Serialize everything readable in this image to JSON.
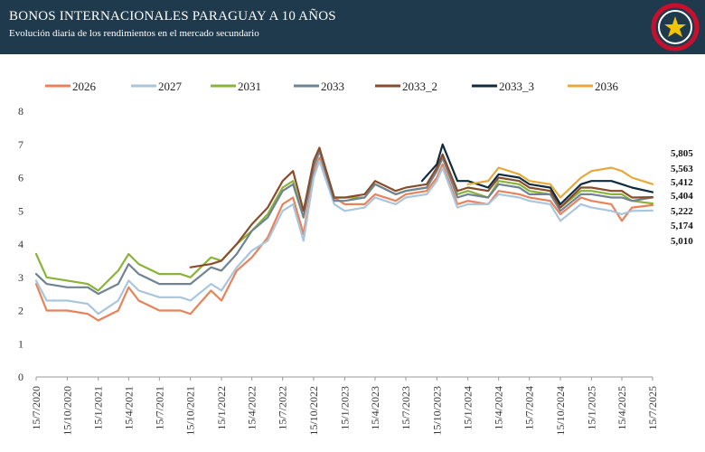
{
  "header": {
    "title": "BONOS INTERNACIONALES PARAGUAY A 10 AÑOS",
    "subtitle": "Evolución diaria de los rendimientos en el mercado secundario"
  },
  "chart_data": {
    "type": "line",
    "ylim": [
      0,
      8
    ],
    "yticks": [
      "0",
      "1",
      "2",
      "3",
      "4",
      "5",
      "6",
      "7",
      "8"
    ],
    "xticks": [
      "15/7/2020",
      "15/10/2020",
      "15/1/2021",
      "15/4/2021",
      "15/7/2021",
      "15/10/2021",
      "15/1/2022",
      "15/4/2022",
      "15/7/2022",
      "15/10/2022",
      "15/1/2023",
      "15/4/2023",
      "15/7/2023",
      "15/10/2023",
      "15/1/2024",
      "15/4/2024",
      "15/7/2024",
      "15/10/2024",
      "15/1/2025",
      "15/4/2025",
      "15/7/2025"
    ],
    "grid": false,
    "legend_position": "top",
    "end_labels": [
      "5,805",
      "5,563",
      "5,412",
      "5,404",
      "5,222",
      "5,174",
      "5,010"
    ],
    "series": [
      {
        "name": "2026",
        "color": "#e8825a",
        "x": [
          "15/7/2020",
          "15/8/2020",
          "15/10/2020",
          "15/12/2020",
          "15/1/2021",
          "15/3/2021",
          "15/4/2021",
          "15/5/2021",
          "15/7/2021",
          "15/9/2021",
          "15/10/2021",
          "15/12/2021",
          "15/1/2022",
          "1/3/2022",
          "15/4/2022",
          "1/6/2022",
          "15/7/2022",
          "15/8/2022",
          "15/9/2022",
          "15/10/2022",
          "1/11/2022",
          "15/12/2022",
          "15/1/2023",
          "15/3/2023",
          "15/4/2023",
          "15/6/2023",
          "15/7/2023",
          "15/9/2023",
          "15/10/2023",
          "1/11/2023",
          "15/12/2023",
          "15/1/2024",
          "15/3/2024",
          "15/4/2024",
          "15/6/2024",
          "15/7/2024",
          "15/9/2024",
          "15/10/2024",
          "15/12/2024",
          "15/1/2025",
          "15/3/2025",
          "15/4/2025",
          "15/5/2025",
          "15/7/2025"
        ],
        "y": [
          2.8,
          2.0,
          2.0,
          1.9,
          1.7,
          2.0,
          2.7,
          2.3,
          2.0,
          2.0,
          1.9,
          2.6,
          2.3,
          3.2,
          3.6,
          4.2,
          5.2,
          5.4,
          4.3,
          6.1,
          6.6,
          5.4,
          5.2,
          5.2,
          5.5,
          5.3,
          5.5,
          5.6,
          6.0,
          6.4,
          5.2,
          5.3,
          5.2,
          5.6,
          5.5,
          5.4,
          5.3,
          4.9,
          5.4,
          5.3,
          5.2,
          4.7,
          5.1,
          5.174
        ]
      },
      {
        "name": "2027",
        "color": "#a9c6dd",
        "x": [
          "15/7/2020",
          "15/8/2020",
          "15/10/2020",
          "15/12/2020",
          "15/1/2021",
          "15/3/2021",
          "15/4/2021",
          "15/5/2021",
          "15/7/2021",
          "15/9/2021",
          "15/10/2021",
          "15/12/2021",
          "15/1/2022",
          "1/3/2022",
          "15/4/2022",
          "1/6/2022",
          "15/7/2022",
          "15/8/2022",
          "15/9/2022",
          "15/10/2022",
          "1/11/2022",
          "15/12/2022",
          "15/1/2023",
          "15/3/2023",
          "15/4/2023",
          "15/6/2023",
          "15/7/2023",
          "15/9/2023",
          "15/10/2023",
          "1/11/2023",
          "15/12/2023",
          "15/1/2024",
          "15/3/2024",
          "15/4/2024",
          "15/6/2024",
          "15/7/2024",
          "15/9/2024",
          "15/10/2024",
          "15/12/2024",
          "15/1/2025",
          "15/3/2025",
          "15/4/2025",
          "15/5/2025",
          "15/7/2025"
        ],
        "y": [
          2.9,
          2.3,
          2.3,
          2.2,
          1.9,
          2.3,
          2.9,
          2.6,
          2.4,
          2.4,
          2.3,
          2.8,
          2.6,
          3.3,
          3.8,
          4.1,
          5.0,
          5.2,
          4.1,
          6.0,
          6.5,
          5.2,
          5.0,
          5.1,
          5.4,
          5.2,
          5.4,
          5.5,
          5.9,
          6.3,
          5.1,
          5.2,
          5.2,
          5.5,
          5.4,
          5.3,
          5.2,
          4.7,
          5.2,
          5.1,
          5.0,
          4.9,
          5.0,
          5.01
        ]
      },
      {
        "name": "2031",
        "color": "#8ab33a",
        "x": [
          "15/7/2020",
          "15/8/2020",
          "15/10/2020",
          "15/12/2020",
          "15/1/2021",
          "15/3/2021",
          "15/4/2021",
          "15/5/2021",
          "15/7/2021",
          "15/9/2021",
          "15/10/2021",
          "15/12/2021",
          "15/1/2022",
          "1/3/2022",
          "15/4/2022",
          "1/6/2022",
          "15/7/2022",
          "15/8/2022",
          "15/9/2022",
          "15/10/2022",
          "1/11/2022",
          "15/12/2022",
          "15/1/2023",
          "15/3/2023",
          "15/4/2023",
          "15/6/2023",
          "15/7/2023",
          "15/9/2023",
          "15/10/2023",
          "1/11/2023",
          "15/12/2023",
          "15/1/2024",
          "15/3/2024",
          "15/4/2024",
          "15/6/2024",
          "15/7/2024",
          "15/9/2024",
          "15/10/2024",
          "15/12/2024",
          "15/1/2025",
          "15/3/2025",
          "15/4/2025",
          "15/5/2025",
          "15/7/2025"
        ],
        "y": [
          3.7,
          3.0,
          2.9,
          2.8,
          2.6,
          3.2,
          3.7,
          3.4,
          3.1,
          3.1,
          3.0,
          3.6,
          3.5,
          4.0,
          4.4,
          4.9,
          5.7,
          5.9,
          4.8,
          6.4,
          6.8,
          5.4,
          5.4,
          5.4,
          5.8,
          5.5,
          5.6,
          5.7,
          6.2,
          6.6,
          5.5,
          5.6,
          5.4,
          5.9,
          5.8,
          5.6,
          5.5,
          5.1,
          5.6,
          5.6,
          5.5,
          5.5,
          5.3,
          5.222
        ]
      },
      {
        "name": "2033",
        "color": "#6f8393",
        "x": [
          "15/7/2020",
          "15/8/2020",
          "15/10/2020",
          "15/12/2020",
          "15/1/2021",
          "15/3/2021",
          "15/4/2021",
          "15/5/2021",
          "15/7/2021",
          "15/9/2021",
          "15/10/2021",
          "15/12/2021",
          "15/1/2022",
          "1/3/2022",
          "15/4/2022",
          "1/6/2022",
          "15/7/2022",
          "15/8/2022",
          "15/9/2022",
          "15/10/2022",
          "1/11/2022",
          "15/12/2022",
          "15/1/2023",
          "15/3/2023",
          "15/4/2023",
          "15/6/2023",
          "15/7/2023",
          "15/9/2023",
          "15/10/2023",
          "1/11/2023",
          "15/12/2023",
          "15/1/2024",
          "15/3/2024",
          "15/4/2024",
          "15/6/2024",
          "15/7/2024",
          "15/9/2024",
          "15/10/2024",
          "15/12/2024",
          "15/1/2025",
          "15/3/2025",
          "15/4/2025",
          "15/5/2025",
          "15/7/2025"
        ],
        "y": [
          3.1,
          2.8,
          2.7,
          2.7,
          2.5,
          2.8,
          3.4,
          3.1,
          2.8,
          2.8,
          2.8,
          3.3,
          3.2,
          3.7,
          4.4,
          4.8,
          5.6,
          5.8,
          4.8,
          6.3,
          6.8,
          5.3,
          5.3,
          5.4,
          5.8,
          5.5,
          5.6,
          5.7,
          6.2,
          6.6,
          5.4,
          5.5,
          5.4,
          5.8,
          5.7,
          5.5,
          5.5,
          5.0,
          5.5,
          5.5,
          5.4,
          5.4,
          5.3,
          5.404
        ]
      },
      {
        "name": "2033_2",
        "color": "#8a4d2b",
        "x": [
          "15/10/2021",
          "15/12/2021",
          "15/1/2022",
          "1/3/2022",
          "15/4/2022",
          "1/6/2022",
          "15/7/2022",
          "15/8/2022",
          "15/9/2022",
          "15/10/2022",
          "1/11/2022",
          "15/12/2022",
          "15/1/2023",
          "15/3/2023",
          "15/4/2023",
          "15/6/2023",
          "15/7/2023",
          "15/9/2023",
          "15/10/2023",
          "1/11/2023",
          "15/12/2023",
          "15/1/2024",
          "15/3/2024",
          "15/4/2024",
          "15/6/2024",
          "15/7/2024",
          "15/9/2024",
          "15/10/2024",
          "15/12/2024",
          "15/1/2025",
          "15/3/2025",
          "15/4/2025",
          "15/5/2025",
          "15/7/2025"
        ],
        "y": [
          3.3,
          3.4,
          3.5,
          4.0,
          4.6,
          5.1,
          5.9,
          6.2,
          5.0,
          6.5,
          6.9,
          5.4,
          5.4,
          5.5,
          5.9,
          5.6,
          5.7,
          5.8,
          6.3,
          6.7,
          5.6,
          5.7,
          5.6,
          6.0,
          5.9,
          5.7,
          5.6,
          5.1,
          5.7,
          5.7,
          5.6,
          5.6,
          5.4,
          5.412
        ]
      },
      {
        "name": "2033_3",
        "color": "#0f2b3d",
        "x": [
          "1/9/2023",
          "15/10/2023",
          "1/11/2023",
          "15/12/2023",
          "15/1/2024",
          "15/3/2024",
          "15/4/2024",
          "15/6/2024",
          "15/7/2024",
          "15/9/2024",
          "15/10/2024",
          "15/12/2024",
          "15/1/2025",
          "15/3/2025",
          "15/4/2025",
          "15/5/2025",
          "15/7/2025"
        ],
        "y": [
          5.9,
          6.4,
          7.0,
          5.9,
          5.9,
          5.7,
          6.1,
          6.0,
          5.8,
          5.7,
          5.2,
          5.8,
          5.9,
          5.9,
          5.8,
          5.7,
          5.563
        ]
      },
      {
        "name": "2036",
        "color": "#e8a83a",
        "x": [
          "15/1/2024",
          "15/3/2024",
          "15/4/2024",
          "15/6/2024",
          "15/7/2024",
          "15/9/2024",
          "15/10/2024",
          "15/12/2024",
          "15/1/2025",
          "15/3/2025",
          "15/4/2025",
          "15/5/2025",
          "15/7/2025"
        ],
        "y": [
          5.8,
          5.9,
          6.3,
          6.1,
          5.9,
          5.8,
          5.4,
          6.0,
          6.2,
          6.3,
          6.2,
          6.0,
          5.805
        ]
      }
    ]
  }
}
